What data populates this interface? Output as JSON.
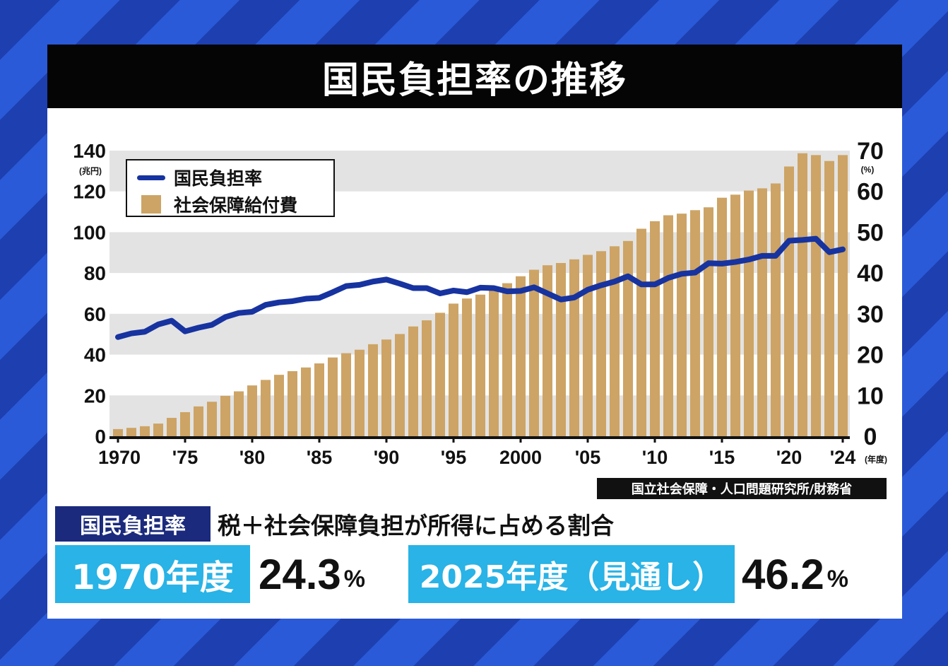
{
  "title": "国民負担率の推移",
  "chart_data": {
    "type": "bar+line",
    "x": [
      1970,
      1971,
      1972,
      1973,
      1974,
      1975,
      1976,
      1977,
      1978,
      1979,
      1980,
      1981,
      1982,
      1983,
      1984,
      1985,
      1986,
      1987,
      1988,
      1989,
      1990,
      1991,
      1992,
      1993,
      1994,
      1995,
      1996,
      1997,
      1998,
      1999,
      2000,
      2001,
      2002,
      2003,
      2004,
      2005,
      2006,
      2007,
      2008,
      2009,
      2010,
      2011,
      2012,
      2013,
      2014,
      2015,
      2016,
      2017,
      2018,
      2019,
      2020,
      2021,
      2022,
      2023,
      2024
    ],
    "series": [
      {
        "name": "国民負担率",
        "type": "line",
        "axis": "right",
        "color": "#1733a0",
        "values": [
          24.3,
          25.2,
          25.6,
          27.4,
          28.3,
          25.7,
          26.6,
          27.3,
          29.2,
          30.2,
          30.5,
          32.2,
          32.8,
          33.1,
          33.7,
          33.9,
          35.3,
          36.8,
          37.1,
          37.9,
          38.4,
          37.4,
          36.3,
          36.3,
          35.0,
          35.7,
          35.3,
          36.4,
          36.3,
          35.5,
          35.6,
          36.5,
          35.0,
          33.5,
          34.0,
          35.9,
          37.0,
          37.9,
          39.2,
          37.2,
          37.2,
          38.8,
          39.8,
          40.1,
          42.4,
          42.3,
          42.7,
          43.3,
          44.2,
          44.2,
          47.9,
          48.1,
          48.4,
          45.1,
          45.8
        ]
      },
      {
        "name": "社会保障給付費",
        "type": "bar",
        "axis": "left",
        "color": "#cda465",
        "values": [
          3.5,
          4.1,
          4.9,
          6.2,
          9.0,
          11.8,
          14.6,
          16.9,
          19.8,
          22.0,
          24.9,
          27.6,
          30.1,
          31.9,
          33.7,
          35.7,
          38.6,
          40.7,
          42.4,
          45.1,
          47.4,
          50.1,
          53.8,
          56.8,
          60.5,
          65.0,
          67.5,
          69.4,
          72.1,
          75.0,
          78.4,
          81.6,
          83.8,
          84.9,
          86.7,
          88.9,
          90.7,
          93.1,
          95.7,
          101.7,
          105.4,
          108.3,
          109.1,
          110.8,
          112.2,
          116.9,
          118.4,
          120.4,
          121.5,
          123.9,
          132.2,
          138.7,
          137.8,
          134.9,
          137.8
        ]
      }
    ],
    "x_tick_labels": [
      "1970",
      "'75",
      "'80",
      "'85",
      "'90",
      "'95",
      "2000",
      "'05",
      "'10",
      "'15",
      "'20",
      "'24"
    ],
    "x_ticks": [
      1970,
      1975,
      1980,
      1985,
      1990,
      1995,
      2000,
      2005,
      2010,
      2015,
      2020,
      2024
    ],
    "xunit": "(年度)",
    "left_axis": {
      "unit": "(兆円)",
      "ylim": [
        0,
        140
      ],
      "ticks": [
        0,
        20,
        40,
        60,
        80,
        100,
        120,
        140
      ]
    },
    "right_axis": {
      "unit": "(%)",
      "ylim": [
        0,
        70
      ],
      "ticks": [
        0,
        10,
        20,
        30,
        40,
        50,
        60,
        70
      ]
    },
    "legend": "top-left",
    "grid": "alternating bands"
  },
  "source": "国立社会保障・人口問題研究所/財務省",
  "definition": {
    "label": "国民負担率",
    "text": "税＋社会保障負担が所得に占める割合"
  },
  "stats": [
    {
      "label": "1970年度",
      "value": "24.3",
      "unit": "%"
    },
    {
      "label": "2025年度（見通し）",
      "value": "46.2",
      "unit": "%"
    }
  ]
}
